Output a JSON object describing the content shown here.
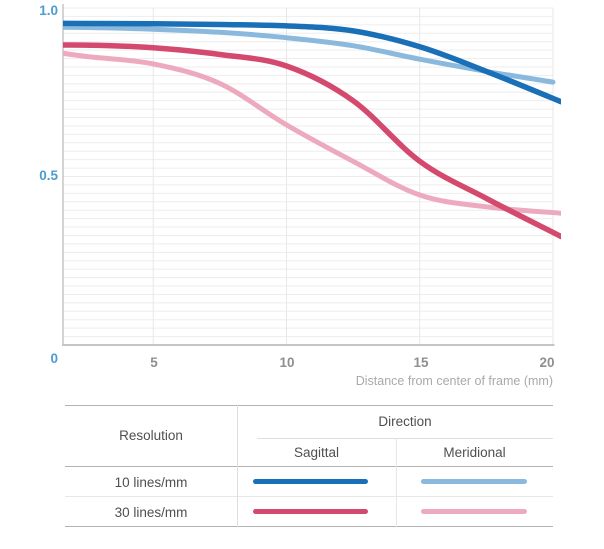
{
  "chart_data": {
    "type": "line",
    "title": "",
    "xlabel": "Distance from center of frame (mm)",
    "ylabel": "",
    "xlim": [
      0,
      20.3
    ],
    "ylim": [
      0,
      1.0
    ],
    "grid": {
      "horizontal_step": 0.025,
      "vertical_ticks": [
        5,
        10,
        15,
        20
      ]
    },
    "origin_label": "0",
    "xtick_labels": [
      "5",
      "10",
      "15",
      "20"
    ],
    "xtick_values": [
      5,
      10,
      15,
      20
    ],
    "ytick_labels": [
      "1.0",
      "0.5"
    ],
    "ytick_values": [
      1.0,
      0.5
    ],
    "legend_position": "bottom-table",
    "series": [
      {
        "name": "10 lines/mm Sagittal",
        "resolution": "10 lines/mm",
        "direction": "Sagittal",
        "color": "#1a70b7",
        "width": 5.5,
        "points": [
          [
            0,
            0.955
          ],
          [
            2.5,
            0.954
          ],
          [
            5,
            0.953
          ],
          [
            7.5,
            0.951
          ],
          [
            10,
            0.947
          ],
          [
            12.5,
            0.932
          ],
          [
            15,
            0.885
          ],
          [
            17.5,
            0.812
          ],
          [
            20.3,
            0.722
          ]
        ]
      },
      {
        "name": "10 lines/mm Meridional",
        "resolution": "10 lines/mm",
        "direction": "Meridional",
        "color": "#8ab9dd",
        "width": 5,
        "points": [
          [
            0,
            0.944
          ],
          [
            2.5,
            0.942
          ],
          [
            5,
            0.937
          ],
          [
            7.5,
            0.928
          ],
          [
            10,
            0.912
          ],
          [
            12.5,
            0.888
          ],
          [
            15,
            0.848
          ],
          [
            17.5,
            0.812
          ],
          [
            20,
            0.78
          ]
        ]
      },
      {
        "name": "30 lines/mm Sagittal",
        "resolution": "30 lines/mm",
        "direction": "Sagittal",
        "color": "#d44a6e",
        "width": 5.5,
        "points": [
          [
            0,
            0.885
          ],
          [
            1.5,
            0.89
          ],
          [
            3,
            0.889
          ],
          [
            5,
            0.882
          ],
          [
            7.5,
            0.862
          ],
          [
            10,
            0.828
          ],
          [
            12.5,
            0.725
          ],
          [
            15,
            0.545
          ],
          [
            17.5,
            0.435
          ],
          [
            20.3,
            0.322
          ]
        ]
      },
      {
        "name": "30 lines/mm Meridional",
        "resolution": "30 lines/mm",
        "direction": "Meridional",
        "color": "#edaabe",
        "width": 5,
        "points": [
          [
            0,
            0.876
          ],
          [
            1,
            0.872
          ],
          [
            2.5,
            0.856
          ],
          [
            5,
            0.834
          ],
          [
            7.5,
            0.776
          ],
          [
            10,
            0.653
          ],
          [
            12.5,
            0.545
          ],
          [
            15,
            0.445
          ],
          [
            17.5,
            0.41
          ],
          [
            20.3,
            0.391
          ]
        ]
      }
    ]
  },
  "legend_table": {
    "resolution_header": "Resolution",
    "direction_header": "Direction",
    "direction_columns": [
      "Sagittal",
      "Meridional"
    ],
    "rows": [
      {
        "label": "10 lines/mm",
        "sagittal_color": "#1a70b7",
        "meridional_color": "#8ab9dd"
      },
      {
        "label": "30 lines/mm",
        "sagittal_color": "#d44a6e",
        "meridional_color": "#edaabe"
      }
    ]
  },
  "colors": {
    "axis_tick_blue": "#4b9ccf",
    "axis_tick_gray": "#8f8f8f",
    "axis_title_gray": "#a9a9a9",
    "gridline": "#ededed",
    "vertical_gridline": "#e7e7e7",
    "axis_line": "#c5c5c5",
    "table_border_dark": "#b3b3b3",
    "table_border_light": "#dedede",
    "table_text": "#4f4f4f"
  }
}
